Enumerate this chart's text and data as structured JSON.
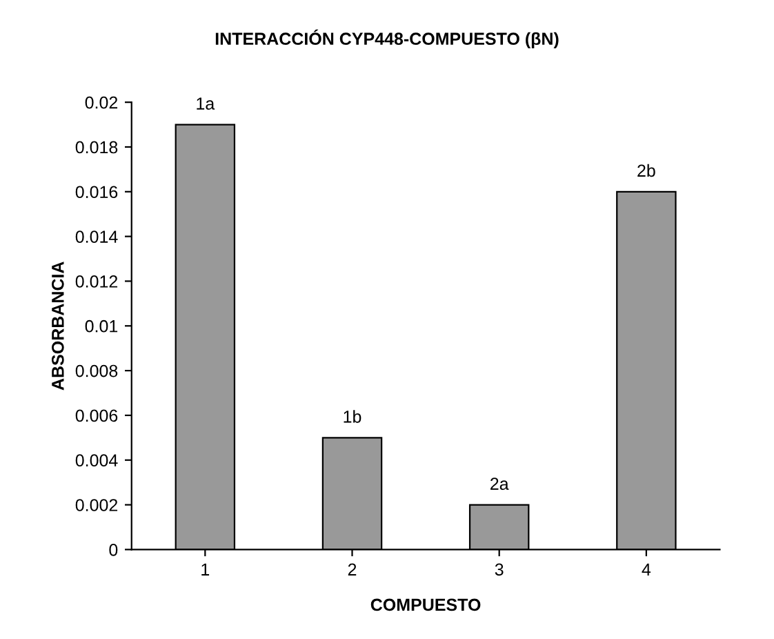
{
  "chart_data": {
    "type": "bar",
    "title": "INTERACCIÓN CYP448-COMPUESTO (βN)",
    "xlabel": "COMPUESTO",
    "ylabel": "ABSORBANCIA",
    "categories": [
      "1",
      "2",
      "3",
      "4"
    ],
    "values": [
      0.019,
      0.005,
      0.002,
      0.016
    ],
    "color": "#999999",
    "ylim": [
      0,
      0.02
    ],
    "yticks": [
      0,
      0.002,
      0.004,
      0.006,
      0.008,
      0.01,
      0.012,
      0.014,
      0.016,
      0.018,
      0.02
    ],
    "grid": false,
    "annotations": [
      {
        "text": "1a",
        "x": "1",
        "y": 0.019
      },
      {
        "text": "1b",
        "x": "2",
        "y": 0.005
      },
      {
        "text": "2a",
        "x": "3",
        "y": 0.002
      },
      {
        "text": "2b",
        "x": "4",
        "y": 0.016
      }
    ]
  }
}
